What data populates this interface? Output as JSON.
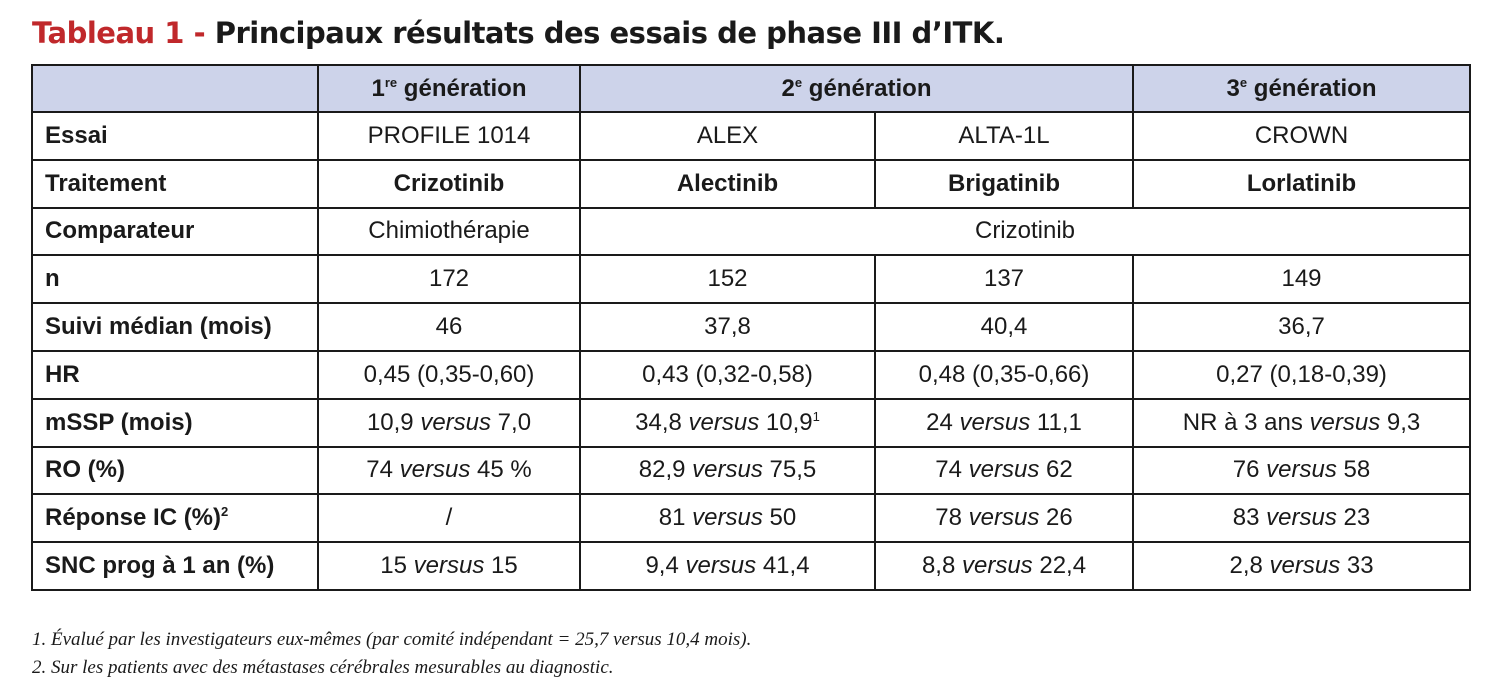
{
  "title": {
    "lead": "Tableau 1 -",
    "rest": " Principaux résultats des essais de phase III d’ITK."
  },
  "header": {
    "gen1": {
      "num": "1",
      "sup": "re",
      "text": " génération"
    },
    "gen2": {
      "num": "2",
      "sup": "e",
      "text": " génération"
    },
    "gen3": {
      "num": "3",
      "sup": "e",
      "text": " génération"
    }
  },
  "rows": {
    "essai": {
      "label": "Essai",
      "c1": "PROFILE 1014",
      "c2": "ALEX",
      "c3": "ALTA-1L",
      "c4": "CROWN"
    },
    "traitement": {
      "label": "Traitement",
      "c1": "Crizotinib",
      "c2": "Alectinib",
      "c3": "Brigatinib",
      "c4": "Lorlatinib"
    },
    "comparateur": {
      "label": "Comparateur",
      "c1": "Chimiothérapie",
      "c2": "Crizotinib"
    },
    "n": {
      "label": "n",
      "c1": "172",
      "c2": "152",
      "c3": "137",
      "c4": "149"
    },
    "suivi": {
      "label": "Suivi médian (mois)",
      "c1": "46",
      "c2": "37,8",
      "c3": "40,4",
      "c4": "36,7"
    },
    "hr": {
      "label": "HR",
      "c1": "0,45 (0,35-0,60)",
      "c2": "0,43 (0,32-0,58)",
      "c3": "0,48 (0,35-0,66)",
      "c4": "0,27 (0,18-0,39)"
    },
    "mssp": {
      "label": "mSSP (mois)",
      "c1": {
        "a": "10,9 ",
        "vs": "versus",
        "b": " 7,0"
      },
      "c2": {
        "a": "34,8 ",
        "vs": "versus",
        "b": " 10,9",
        "sup": "1"
      },
      "c3": {
        "a": "24 ",
        "vs": "versus",
        "b": " 11,1"
      },
      "c4": {
        "a": "NR à 3 ans ",
        "vs": "versus",
        "b": " 9,3"
      }
    },
    "ro": {
      "label": "RO (%)",
      "c1": {
        "a": "74 ",
        "vs": "versus",
        "b": " 45 %"
      },
      "c2": {
        "a": "82,9 ",
        "vs": "versus",
        "b": " 75,5"
      },
      "c3": {
        "a": "74 ",
        "vs": "versus",
        "b": " 62"
      },
      "c4": {
        "a": "76 ",
        "vs": "versus",
        "b": " 58"
      }
    },
    "reponse": {
      "label": "Réponse IC (%)",
      "label_sup": "2",
      "c1": "/",
      "c2": {
        "a": "81 ",
        "vs": "versus",
        "b": " 50"
      },
      "c3": {
        "a": "78 ",
        "vs": "versus",
        "b": " 26"
      },
      "c4": {
        "a": "83 ",
        "vs": "versus",
        "b": " 23"
      }
    },
    "snc": {
      "label": "SNC prog à 1 an (%)",
      "c1": {
        "a": "15 ",
        "vs": "versus",
        "b": " 15"
      },
      "c2": {
        "a": "9,4 ",
        "vs": "versus",
        "b": " 41,4"
      },
      "c3": {
        "a": "8,8 ",
        "vs": "versus",
        "b": " 22,4"
      },
      "c4": {
        "a": "2,8 ",
        "vs": "versus",
        "b": " 33"
      }
    }
  },
  "footnotes": [
    "1. Évalué par les investigateurs eux-mêmes (par comité indépendant = 25,7 versus 10,4 mois).",
    "2. Sur les patients avec des métastases cérébrales mesurables au diagnostic."
  ]
}
